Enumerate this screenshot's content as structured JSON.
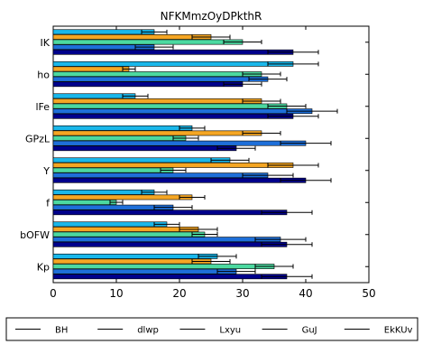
{
  "chart_data": {
    "type": "bar",
    "orientation": "horizontal",
    "title": "NFKMmzOyDPkthR",
    "xlabel": "",
    "ylabel": "",
    "xlim": [
      0,
      50
    ],
    "xticks": [
      0,
      10,
      20,
      30,
      40,
      50
    ],
    "categories": [
      "IK",
      "ho",
      "lFe",
      "GPzL",
      "Y",
      "f",
      "bOFW",
      "Kp"
    ],
    "grid": false,
    "legend_position": "bottom",
    "series": [
      {
        "name": "BH",
        "color": "#00008b",
        "values": [
          38,
          30,
          38,
          29,
          40,
          37,
          37,
          37
        ],
        "errors": [
          4,
          3,
          4,
          3,
          4,
          4,
          4,
          4
        ]
      },
      {
        "name": "dlwp",
        "color": "#1e6fd9",
        "values": [
          16,
          34,
          41,
          40,
          34,
          19,
          36,
          29
        ],
        "errors": [
          3,
          3,
          4,
          4,
          4,
          3,
          4,
          3
        ]
      },
      {
        "name": "Lxyu",
        "color": "#4cd9a0",
        "values": [
          30,
          33,
          37,
          21,
          19,
          10,
          24,
          35
        ],
        "errors": [
          3,
          3,
          3,
          2,
          2,
          1,
          2,
          3
        ]
      },
      {
        "name": "GuJ",
        "color": "#f5a623",
        "values": [
          25,
          12,
          33,
          33,
          38,
          22,
          23,
          25
        ],
        "errors": [
          3,
          1,
          3,
          3,
          4,
          2,
          3,
          3
        ]
      },
      {
        "name": "EkKUv",
        "color": "#1ab7ea",
        "values": [
          16,
          38,
          13,
          22,
          28,
          16,
          18,
          26
        ],
        "errors": [
          2,
          4,
          2,
          2,
          3,
          2,
          2,
          3
        ]
      }
    ]
  }
}
